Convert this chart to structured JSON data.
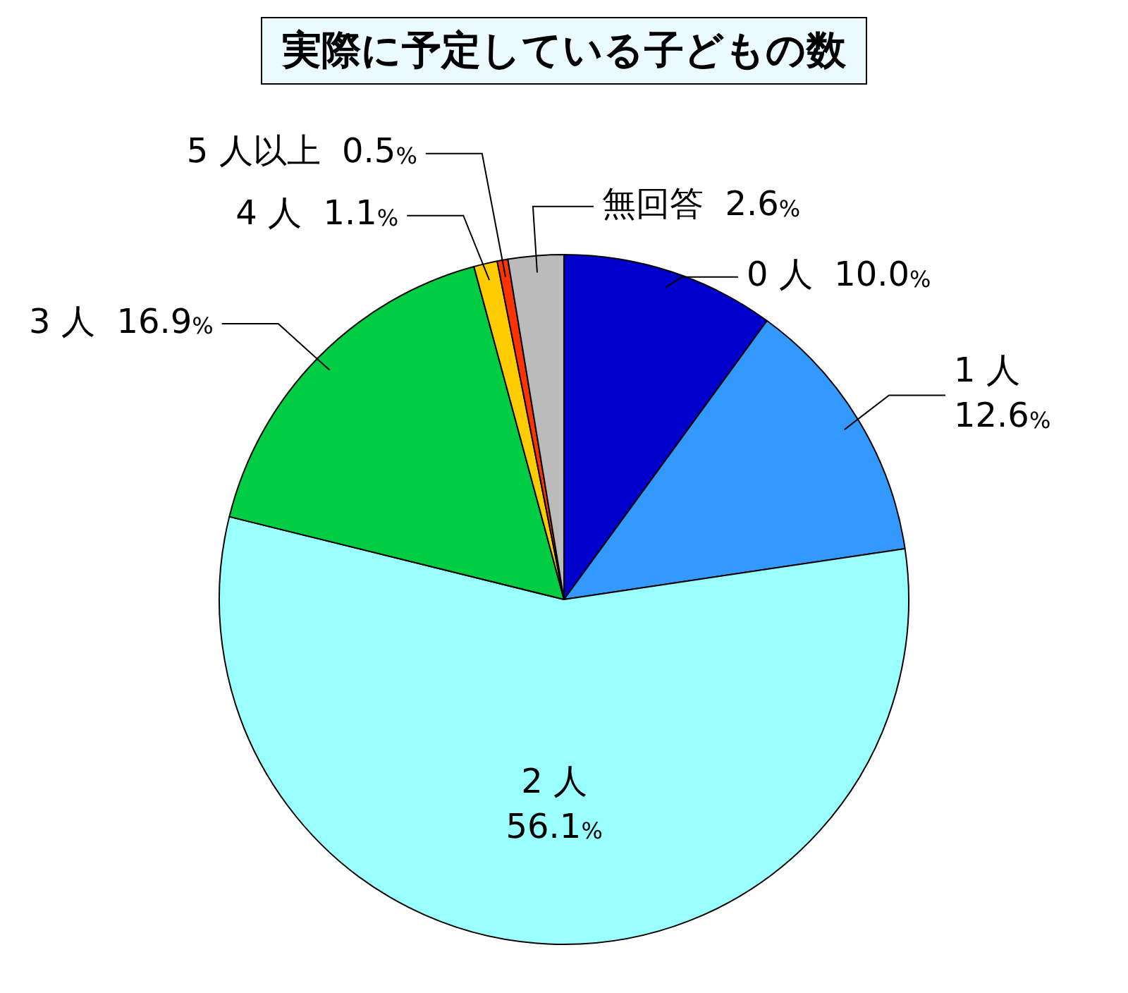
{
  "chart_data": {
    "type": "pie",
    "title": "実際に予定している子どもの数",
    "categories": [
      "0 人",
      "1 人",
      "2 人",
      "3 人",
      "4 人",
      "5 人以上",
      "無回答"
    ],
    "values": [
      10.0,
      12.6,
      56.1,
      16.9,
      1.1,
      0.5,
      2.6
    ],
    "value_labels": [
      "10.0%",
      "12.6%",
      "56.1%",
      "16.9%",
      "1.1%",
      "0.5%",
      "2.6%"
    ],
    "colors": [
      "#0000cc",
      "#3399ff",
      "#99ffff",
      "#00cc44",
      "#ffcc00",
      "#ff3300",
      "#bbbbbb"
    ],
    "legend": false
  }
}
